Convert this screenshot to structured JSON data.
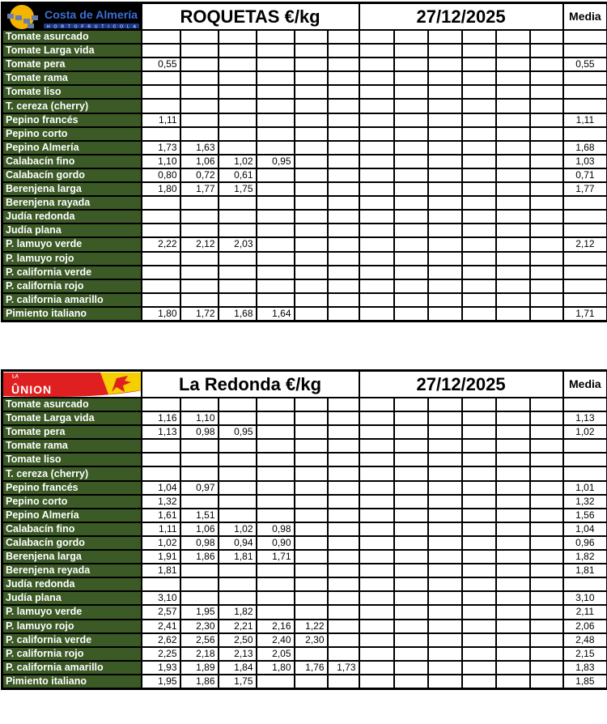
{
  "tables": [
    {
      "logo_text": "Costa de Almería",
      "logo_subtext": "HORTOFRUTICOLA",
      "title": "ROQUETAS  €/kg",
      "date": "27/12/2025",
      "media_label": "Media",
      "rows": [
        {
          "label": "Tomate asurcado",
          "values": [],
          "media": ""
        },
        {
          "label": "Tomate Larga vida",
          "values": [],
          "media": ""
        },
        {
          "label": "Tomate pera",
          "values": [
            "0,55"
          ],
          "media": "0,55"
        },
        {
          "label": "Tomate rama",
          "values": [],
          "media": ""
        },
        {
          "label": "Tomate liso",
          "values": [],
          "media": ""
        },
        {
          "label": "T. cereza (cherry)",
          "values": [],
          "media": ""
        },
        {
          "label": "Pepino francés",
          "values": [
            "1,11"
          ],
          "media": "1,11"
        },
        {
          "label": "Pepino corto",
          "values": [],
          "media": ""
        },
        {
          "label": "Pepino Almería",
          "values": [
            "1,73",
            "1,63"
          ],
          "media": "1,68"
        },
        {
          "label": "Calabacín fino",
          "values": [
            "1,10",
            "1,06",
            "1,02",
            "0,95"
          ],
          "media": "1,03"
        },
        {
          "label": "Calabacín gordo",
          "values": [
            "0,80",
            "0,72",
            "0,61"
          ],
          "media": "0,71"
        },
        {
          "label": "Berenjena larga",
          "values": [
            "1,80",
            "1,77",
            "1,75"
          ],
          "media": "1,77"
        },
        {
          "label": "Berenjena rayada",
          "values": [],
          "media": ""
        },
        {
          "label": "Judía redonda",
          "values": [],
          "media": ""
        },
        {
          "label": "Judía plana",
          "values": [],
          "media": ""
        },
        {
          "label": "P. lamuyo verde",
          "values": [
            "2,22",
            "2,12",
            "2,03"
          ],
          "media": "2,12"
        },
        {
          "label": "P. lamuyo rojo",
          "values": [],
          "media": ""
        },
        {
          "label": "P. california verde",
          "values": [],
          "media": ""
        },
        {
          "label": "P. california rojo",
          "values": [],
          "media": ""
        },
        {
          "label": "P. california amarillo",
          "values": [],
          "media": ""
        },
        {
          "label": "Pimiento italiano",
          "values": [
            "1,80",
            "1,72",
            "1,68",
            "1,64"
          ],
          "media": "1,71"
        }
      ]
    },
    {
      "logo_text": "ÛNION",
      "logo_subtext": "LA",
      "title": "La Redonda  €/kg",
      "date": "27/12/2025",
      "media_label": "Media",
      "rows": [
        {
          "label": "Tomate asurcado",
          "values": [],
          "media": ""
        },
        {
          "label": "Tomate Larga vida",
          "values": [
            "1,16",
            "1,10"
          ],
          "media": "1,13"
        },
        {
          "label": "Tomate pera",
          "values": [
            "1,13",
            "0,98",
            "0,95"
          ],
          "media": "1,02"
        },
        {
          "label": "Tomate rama",
          "values": [],
          "media": ""
        },
        {
          "label": "Tomate liso",
          "values": [],
          "media": ""
        },
        {
          "label": "T. cereza (cherry)",
          "values": [],
          "media": ""
        },
        {
          "label": "Pepino francés",
          "values": [
            "1,04",
            "0,97"
          ],
          "media": "1,01"
        },
        {
          "label": "Pepino corto",
          "values": [
            "1,32"
          ],
          "media": "1,32"
        },
        {
          "label": "Pepino Almería",
          "values": [
            "1,61",
            "1,51"
          ],
          "media": "1,56"
        },
        {
          "label": "Calabacín fino",
          "values": [
            "1,11",
            "1,06",
            "1,02",
            "0,98"
          ],
          "media": "1,04"
        },
        {
          "label": "Calabacín gordo",
          "values": [
            "1,02",
            "0,98",
            "0,94",
            "0,90"
          ],
          "media": "0,96"
        },
        {
          "label": "Berenjena larga",
          "values": [
            "1,91",
            "1,86",
            "1,81",
            "1,71"
          ],
          "media": "1,82"
        },
        {
          "label": "Berenjena reyada",
          "values": [
            "1,81"
          ],
          "media": "1,81"
        },
        {
          "label": "Judía redonda",
          "values": [],
          "media": ""
        },
        {
          "label": "Judía plana",
          "values": [
            "3,10"
          ],
          "media": "3,10"
        },
        {
          "label": "P. lamuyo verde",
          "values": [
            "2,57",
            "1,95",
            "1,82"
          ],
          "media": "2,11"
        },
        {
          "label": "P. lamuyo rojo",
          "values": [
            "2,41",
            "2,30",
            "2,21",
            "2,16",
            "1,22"
          ],
          "media": "2,06"
        },
        {
          "label": "P. california verde",
          "values": [
            "2,62",
            "2,56",
            "2,50",
            "2,40",
            "2,30"
          ],
          "media": "2,48"
        },
        {
          "label": "P. california rojo",
          "values": [
            "2,25",
            "2,18",
            "2,13",
            "2,05"
          ],
          "media": "2,15"
        },
        {
          "label": "P. california amarillo",
          "values": [
            "1,93",
            "1,89",
            "1,84",
            "1,80",
            "1,76",
            "1,73"
          ],
          "media": "1,83"
        },
        {
          "label": "Pimiento italiano",
          "values": [
            "1,95",
            "1,86",
            "1,75"
          ],
          "media": "1,85"
        }
      ]
    }
  ]
}
